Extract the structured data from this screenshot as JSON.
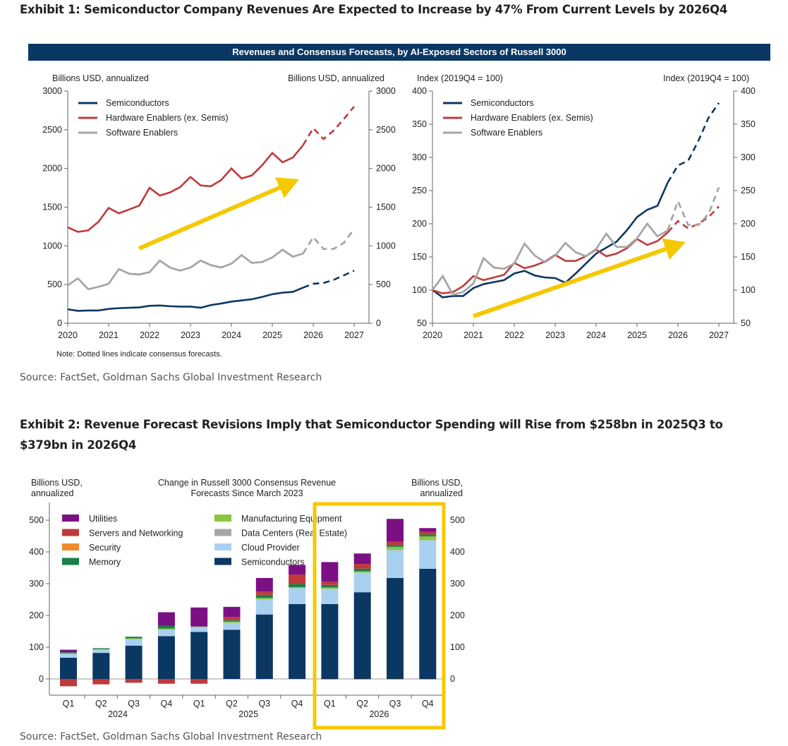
{
  "exhibit1": {
    "title": "Exhibit 1: Semiconductor Company Revenues Are Expected to Increase by 47% From Current Levels by 2026Q4",
    "banner": "Revenues and Consensus Forecasts, by AI-Exposed Sectors of Russell 3000",
    "note": "Note: Dotted lines indicate consensus forecasts.",
    "source": "Source: FactSet, Goldman Sachs Global Investment Research"
  },
  "exhibit2": {
    "title_line1": "Exhibit 2: Revenue Forecast Revisions Imply that Semiconductor Spending will Rise from $258bn in 2025Q3 to",
    "title_line2": "$379bn in 2026Q4",
    "source": "Source: FactSet, Goldman Sachs Global Investment Research"
  },
  "chart_data": [
    {
      "type": "line",
      "ylabel": "Billions USD, annualized",
      "ylabel_right": "Billions USD, annualized",
      "ylim": [
        0,
        3000
      ],
      "yticks": [
        0,
        500,
        1000,
        1500,
        2000,
        2500,
        3000
      ],
      "xlim": [
        2020,
        2027
      ],
      "xticks": [
        "2020",
        "2021",
        "2022",
        "2023",
        "2024",
        "2025",
        "2026",
        "2027"
      ],
      "x_step": "quarterly",
      "forecast_from_index": 23,
      "legend": "top-left",
      "annotation": "yellow-up-arrow",
      "series": [
        {
          "name": "Semiconductors",
          "color": "#0b3763",
          "values": [
            180,
            160,
            165,
            165,
            185,
            195,
            200,
            205,
            225,
            230,
            220,
            215,
            215,
            200,
            235,
            255,
            280,
            295,
            310,
            340,
            375,
            395,
            405,
            460,
            510,
            520,
            560,
            620,
            680
          ]
        },
        {
          "name": "Hardware Enablers (ex. Semis)",
          "color": "#c0393b",
          "values": [
            1240,
            1180,
            1200,
            1310,
            1490,
            1420,
            1470,
            1520,
            1750,
            1650,
            1690,
            1760,
            1890,
            1780,
            1770,
            1850,
            2000,
            1870,
            1910,
            2040,
            2200,
            2080,
            2140,
            2300,
            2520,
            2380,
            2490,
            2640,
            2800
          ]
        },
        {
          "name": "Software Enablers",
          "color": "#a6a6a6",
          "values": [
            490,
            580,
            440,
            470,
            510,
            700,
            640,
            630,
            660,
            810,
            720,
            680,
            720,
            810,
            750,
            720,
            770,
            880,
            780,
            790,
            850,
            950,
            860,
            900,
            1110,
            960,
            960,
            1040,
            1220
          ]
        }
      ]
    },
    {
      "type": "line",
      "ylabel": "Index (2019Q4 = 100)",
      "ylabel_right": "Index (2019Q4 = 100)",
      "ylim": [
        50,
        400
      ],
      "yticks": [
        50,
        100,
        150,
        200,
        250,
        300,
        350,
        400
      ],
      "xlim": [
        2020,
        2027
      ],
      "xticks": [
        "2020",
        "2021",
        "2022",
        "2023",
        "2024",
        "2025",
        "2026",
        "2027"
      ],
      "x_step": "quarterly",
      "forecast_from_index": 23,
      "legend": "top-left",
      "annotation": "yellow-up-arrow",
      "series": [
        {
          "name": "Semiconductors",
          "color": "#0b3763",
          "values": [
            100,
            89,
            91,
            91,
            103,
            109,
            112,
            115,
            125,
            129,
            122,
            119,
            118,
            111,
            125,
            140,
            155,
            164,
            173,
            190,
            210,
            221,
            227,
            262,
            288,
            295,
            325,
            360,
            382
          ]
        },
        {
          "name": "Hardware Enablers (ex. Semis)",
          "color": "#c0393b",
          "values": [
            100,
            95,
            97,
            106,
            121,
            115,
            119,
            123,
            141,
            133,
            137,
            143,
            153,
            144,
            144,
            151,
            161,
            151,
            155,
            163,
            177,
            168,
            174,
            187,
            204,
            193,
            200,
            210,
            226
          ]
        },
        {
          "name": "Software Enablers",
          "color": "#a6a6a6",
          "values": [
            100,
            121,
            93,
            97,
            110,
            148,
            134,
            132,
            140,
            170,
            152,
            142,
            152,
            171,
            157,
            151,
            162,
            185,
            165,
            165,
            178,
            200,
            181,
            190,
            234,
            198,
            198,
            215,
            255
          ]
        }
      ]
    },
    {
      "type": "bar",
      "stacked": true,
      "title": "Change in Russell 3000 Consensus Revenue Forecasts Since March 2023",
      "ylabel": "Billions USD, annualized",
      "ylabel_right": "Billions USD, annualized",
      "ylim": [
        -50,
        550
      ],
      "yticks": [
        0,
        100,
        200,
        300,
        400,
        500
      ],
      "categories": [
        "Q1",
        "Q2",
        "Q3",
        "Q4",
        "Q1",
        "Q2",
        "Q3",
        "Q4",
        "Q1",
        "Q2",
        "Q3",
        "Q4"
      ],
      "years": [
        "2024",
        "2025",
        "2026"
      ],
      "legend": "top",
      "highlight": "2026 (yellow box)",
      "highlight_color": "#f5c800",
      "series": [
        {
          "name": "Semiconductors",
          "color": "#0b3763",
          "values": [
            67,
            82,
            105,
            135,
            148,
            155,
            203,
            236,
            236,
            273,
            318,
            347
          ]
        },
        {
          "name": "Cloud Provider",
          "color": "#a9d0ee",
          "values": [
            12,
            10,
            20,
            20,
            15,
            22,
            48,
            50,
            48,
            62,
            88,
            90
          ]
        },
        {
          "name": "Data Centers (Real Estate)",
          "color": "#a6a6a6",
          "values": [
            0,
            0,
            0,
            0,
            0,
            0,
            0,
            0,
            0,
            0,
            0,
            0
          ]
        },
        {
          "name": "Manufacturing Equipment",
          "color": "#8cc63f",
          "values": [
            2,
            2,
            3,
            4,
            2,
            4,
            4,
            3,
            4,
            4,
            10,
            12
          ]
        },
        {
          "name": "Memory",
          "color": "#1a7f4b",
          "values": [
            3,
            3,
            5,
            8,
            0,
            4,
            10,
            10,
            8,
            8,
            6,
            6
          ]
        },
        {
          "name": "Security",
          "color": "#f08a2c",
          "values": [
            0,
            0,
            0,
            0,
            0,
            0,
            0,
            0,
            -2,
            -2,
            -2,
            -2
          ]
        },
        {
          "name": "Servers and Networking",
          "color": "#c0393b",
          "values": [
            -23,
            -17,
            -12,
            -15,
            -15,
            10,
            10,
            30,
            10,
            15,
            10,
            8
          ]
        },
        {
          "name": "Utilities",
          "color": "#7b1085",
          "values": [
            8,
            0,
            0,
            43,
            60,
            32,
            43,
            30,
            62,
            33,
            72,
            12
          ]
        }
      ]
    }
  ]
}
